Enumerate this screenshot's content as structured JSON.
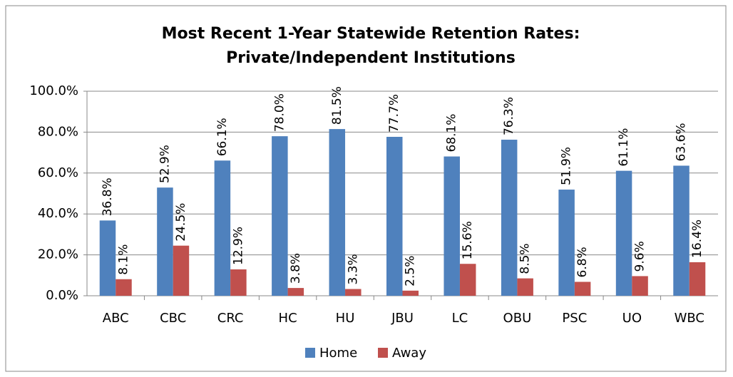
{
  "chart_data": {
    "type": "bar",
    "title": [
      "Most Recent 1-Year Statewide Retention Rates:",
      "Private/Independent Institutions"
    ],
    "categories": [
      "ABC",
      "CBC",
      "CRC",
      "HC",
      "HU",
      "JBU",
      "LC",
      "OBU",
      "PSC",
      "UO",
      "WBC"
    ],
    "series": [
      {
        "name": "Home",
        "color": "#4f81bd",
        "values": [
          36.8,
          52.9,
          66.1,
          78.0,
          81.5,
          77.7,
          68.1,
          76.3,
          51.9,
          61.1,
          63.6
        ],
        "value_labels": [
          "36.8%",
          "52.9%",
          "66.1%",
          "78.0%",
          "81.5%",
          "77.7%",
          "68.1%",
          "76.3%",
          "51.9%",
          "61.1%",
          "63.6%"
        ]
      },
      {
        "name": "Away",
        "color": "#c0504d",
        "values": [
          8.1,
          24.5,
          12.9,
          3.8,
          3.3,
          2.5,
          15.6,
          8.5,
          6.8,
          9.6,
          16.4
        ],
        "value_labels": [
          "8.1%",
          "24.5%",
          "12.9%",
          "3.8%",
          "3.3%",
          "2.5%",
          "15.6%",
          "8.5%",
          "6.8%",
          "9.6%",
          "16.4%"
        ]
      }
    ],
    "ylim": [
      0,
      100
    ],
    "yticks": [
      {
        "value": 0,
        "label": "0.0%"
      },
      {
        "value": 20,
        "label": "20.0%"
      },
      {
        "value": 40,
        "label": "40.0%"
      },
      {
        "value": 60,
        "label": "60.0%"
      },
      {
        "value": 80,
        "label": "80.0%"
      },
      {
        "value": 100,
        "label": "100.0%"
      }
    ],
    "grid": true,
    "legend": "bottom"
  }
}
